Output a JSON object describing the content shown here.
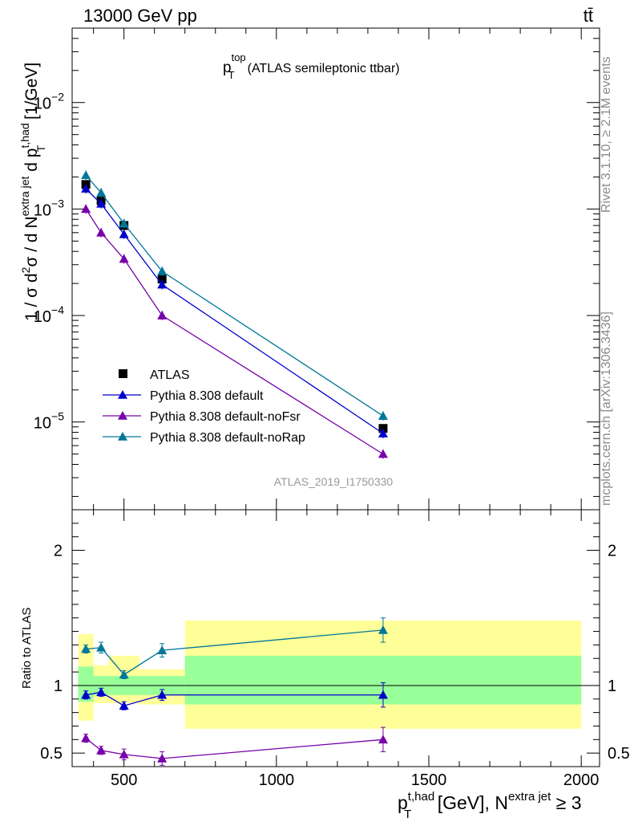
{
  "header": {
    "left": "13000 GeV pp",
    "right": "tt̄"
  },
  "side_labels": {
    "rivet": "Rivet 3.1.10, ≥ 2.1M events",
    "mcplots": "mcplots.cern.ch [arXiv:1306.3436]"
  },
  "analysis_id": "ATLAS_2019_I1750330",
  "colors": {
    "data": "#000000",
    "default": "#0000cc",
    "noFsr": "#7700aa",
    "noRap": "#007799",
    "band_stat": "#99ff99",
    "band_total": "#ffff99"
  },
  "chart_data": [
    {
      "type": "line",
      "panel": "main",
      "title": {
        "main": "p",
        "sup": "top",
        "sub": "T",
        "rest": "(ATLAS semileptonic ttbar)"
      },
      "ylabel": {
        "a": "1 / σ d",
        "a_sup": "2",
        "b": "σ /  d N",
        "b_sup": "extra jet",
        "c": " d p",
        "c_sup": "t,had",
        "c_sub": "T",
        "d": " [1/GeV]"
      },
      "yscale": "log",
      "ylim": [
        1.5e-06,
        0.05
      ],
      "xlim": [
        330,
        2060
      ],
      "yticks": [
        {
          "value": 1e-05,
          "base": "10",
          "exp": "−5"
        },
        {
          "value": 0.0001,
          "base": "10",
          "exp": "−4"
        },
        {
          "value": 0.001,
          "base": "10",
          "exp": "−3"
        },
        {
          "value": 0.01,
          "base": "10",
          "exp": "−2"
        }
      ],
      "legend_position": "lower-left",
      "series": [
        {
          "name": "ATLAS",
          "color_key": "data",
          "marker": "square",
          "x": [
            375,
            425,
            500,
            625,
            1350
          ],
          "y": [
            0.0017,
            0.0012,
            0.0007,
            0.00022,
            8.7e-06
          ]
        },
        {
          "name": "Pythia 8.308 default",
          "color_key": "default",
          "marker": "triangle",
          "x": [
            375,
            425,
            500,
            625,
            1350
          ],
          "y": [
            0.00155,
            0.00112,
            0.00058,
            0.000195,
            7.8e-06
          ]
        },
        {
          "name": "Pythia 8.308 default-noFsr",
          "color_key": "noFsr",
          "marker": "triangle",
          "x": [
            375,
            425,
            500,
            625,
            1350
          ],
          "y": [
            0.001,
            0.0006,
            0.00034,
            0.0001,
            5e-06
          ]
        },
        {
          "name": "Pythia 8.308 default-noRap",
          "color_key": "noRap",
          "marker": "triangle",
          "x": [
            375,
            425,
            500,
            625,
            1350
          ],
          "y": [
            0.00208,
            0.00142,
            0.00073,
            0.00026,
            1.14e-05
          ]
        }
      ]
    },
    {
      "type": "line",
      "panel": "ratio",
      "ylabel": "Ratio to ATLAS",
      "ylim": [
        0.4,
        2.3
      ],
      "xlim": [
        330,
        2060
      ],
      "yticks": [
        0.5,
        1,
        2
      ],
      "xticks": [
        500,
        1000,
        1500,
        2000
      ],
      "xlabel": {
        "a": "p",
        "a_sup": "t,had",
        "a_sub": "T",
        "b": " [GeV], N",
        "b_sup": "extra jet",
        "c": " ≥ 3"
      },
      "bands": [
        {
          "x": [
            350,
            400
          ],
          "stat": [
            0.88,
            1.14
          ],
          "total": [
            0.74,
            1.38
          ]
        },
        {
          "x": [
            400,
            450
          ],
          "stat": [
            0.93,
            1.07
          ],
          "total": [
            0.87,
            1.15
          ]
        },
        {
          "x": [
            450,
            550
          ],
          "stat": [
            0.93,
            1.07
          ],
          "total": [
            0.87,
            1.22
          ]
        },
        {
          "x": [
            550,
            700
          ],
          "stat": [
            0.93,
            1.07
          ],
          "total": [
            0.86,
            1.12
          ]
        },
        {
          "x": [
            700,
            2000
          ],
          "stat": [
            0.86,
            1.22
          ],
          "total": [
            0.68,
            1.48
          ]
        }
      ],
      "series": [
        {
          "name": "Pythia 8.308 default",
          "color_key": "default",
          "x": [
            375,
            425,
            500,
            625,
            1350
          ],
          "y": [
            0.93,
            0.95,
            0.85,
            0.93,
            0.93
          ],
          "err": [
            0.03,
            0.03,
            0.03,
            0.04,
            0.09
          ]
        },
        {
          "name": "Pythia 8.308 default-noFsr",
          "color_key": "noFsr",
          "x": [
            375,
            425,
            500,
            625,
            1350
          ],
          "y": [
            0.61,
            0.52,
            0.49,
            0.46,
            0.6
          ],
          "err": [
            0.03,
            0.03,
            0.04,
            0.05,
            0.09
          ]
        },
        {
          "name": "Pythia 8.308 default-noRap",
          "color_key": "noRap",
          "x": [
            375,
            425,
            500,
            625,
            1350
          ],
          "y": [
            1.27,
            1.28,
            1.08,
            1.26,
            1.41
          ],
          "err": [
            0.03,
            0.04,
            0.03,
            0.05,
            0.09
          ]
        }
      ]
    }
  ]
}
